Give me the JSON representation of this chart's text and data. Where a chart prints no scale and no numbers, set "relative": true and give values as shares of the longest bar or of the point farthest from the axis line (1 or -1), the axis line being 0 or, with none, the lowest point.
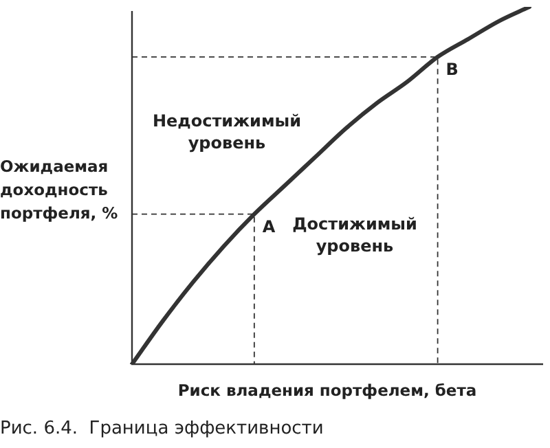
{
  "chart_data": {
    "type": "line",
    "relative": true,
    "xlabel": "Риск владения портфелем, бета",
    "ylabel": "Ожидаемая доходность портфеля, %",
    "categories": [
      null,
      null,
      null,
      null,
      null,
      null,
      null,
      null,
      null,
      null,
      null,
      null,
      null,
      null
    ],
    "series": [
      {
        "color": "#333333",
        "values": [
          0,
          0.12,
          0.23,
          0.33,
          0.42,
          0.5,
          0.58,
          0.66,
          0.73,
          0.79,
          0.86,
          0.91,
          0.96,
          1
        ]
      }
    ],
    "marker": "none",
    "line_style": "solid",
    "legend": false,
    "annotations": [
      "A",
      "B",
      "Недостижимый уровень",
      "Достижимый уровень",
      "Рис. 6.4.  Граница эффективности"
    ]
  }
}
